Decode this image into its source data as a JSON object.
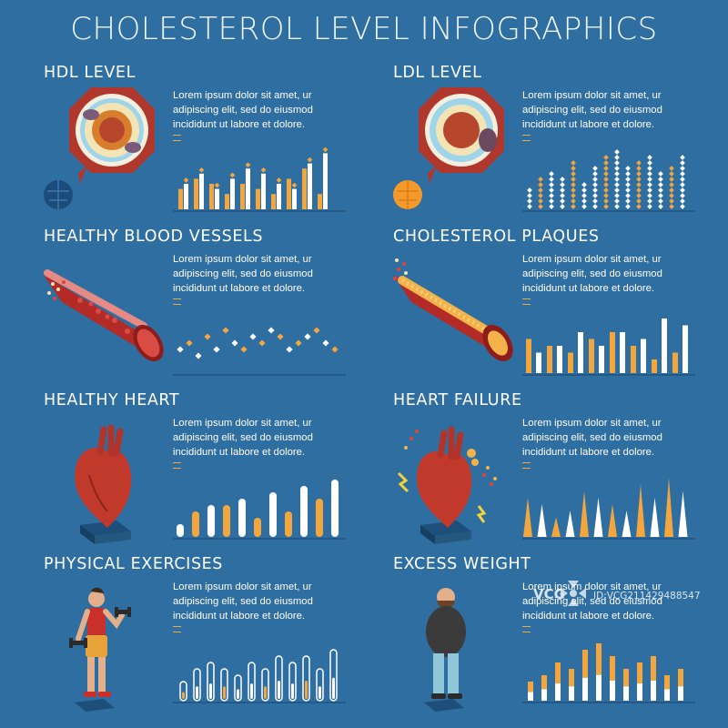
{
  "title": "CHOLESTEROL LEVEL INFOGRAPHICS",
  "lorem": "Lorem ipsum dolor sit amet, ur adipiscing elit, sed do eiusmod incididunt ut labore et dolore.",
  "colors": {
    "background": "#2f6ea1",
    "accent": "#f3a63d",
    "white": "#ffffff"
  },
  "panels": [
    {
      "id": "hdl",
      "heading": "HDL LEVEL",
      "art": "hdl-particle-icon",
      "chart": "bars",
      "series": [
        {
          "name": "orange",
          "values": [
            4,
            6,
            5,
            3,
            5,
            4,
            3,
            6,
            8,
            3
          ]
        },
        {
          "name": "white",
          "values": [
            5,
            7,
            4,
            6,
            8,
            7,
            5,
            4,
            9,
            11
          ]
        }
      ]
    },
    {
      "id": "ldl",
      "heading": "LDL LEVEL",
      "art": "ldl-particle-icon",
      "chart": "dots",
      "values": [
        4,
        6,
        7,
        6,
        9,
        5,
        8,
        10,
        11,
        8,
        9,
        10,
        7,
        8,
        10
      ]
    },
    {
      "id": "vessels",
      "heading": "HEALTHY BLOOD VESSELS",
      "art": "healthy-vessel-icon",
      "chart": "scatter",
      "values": [
        2,
        3,
        1,
        4,
        2,
        5,
        3,
        2,
        4,
        3,
        5,
        4,
        2,
        3,
        4,
        5,
        3,
        2
      ]
    },
    {
      "id": "plaques",
      "heading": "CHOLESTEROL PLAQUES",
      "art": "plaque-vessel-icon",
      "chart": "bars",
      "series": [
        {
          "name": "orange",
          "values": [
            5,
            4,
            3,
            5,
            6,
            4,
            2,
            3
          ]
        },
        {
          "name": "white",
          "values": [
            3,
            4,
            6,
            4,
            6,
            5,
            8,
            7
          ]
        }
      ]
    },
    {
      "id": "heart",
      "heading": "HEALTHY HEART",
      "art": "healthy-heart-icon",
      "chart": "rounded",
      "values": [
        2,
        4,
        5,
        5,
        6,
        3,
        7,
        4,
        8,
        6,
        9
      ]
    },
    {
      "id": "failure",
      "heading": "HEART FAILURE",
      "art": "heart-failure-icon",
      "chart": "spikes",
      "values": [
        6,
        5,
        3,
        4,
        7,
        6,
        5,
        4,
        8,
        6,
        9,
        7
      ]
    },
    {
      "id": "exercise",
      "heading": "PHYSICAL EXERCISES",
      "art": "exercise-person-icon",
      "chart": "tubes",
      "values": [
        3,
        5,
        6,
        5,
        4,
        6,
        5,
        7,
        6,
        7,
        5,
        8
      ]
    },
    {
      "id": "weight",
      "heading": "EXCESS WEIGHT",
      "art": "overweight-person-icon",
      "chart": "stacked",
      "values": [
        3,
        4,
        6,
        5,
        8,
        9,
        7,
        5,
        6,
        7,
        4,
        5
      ]
    }
  ],
  "watermark": {
    "brand": "VCG",
    "id": "ID:VCG211429488547"
  }
}
